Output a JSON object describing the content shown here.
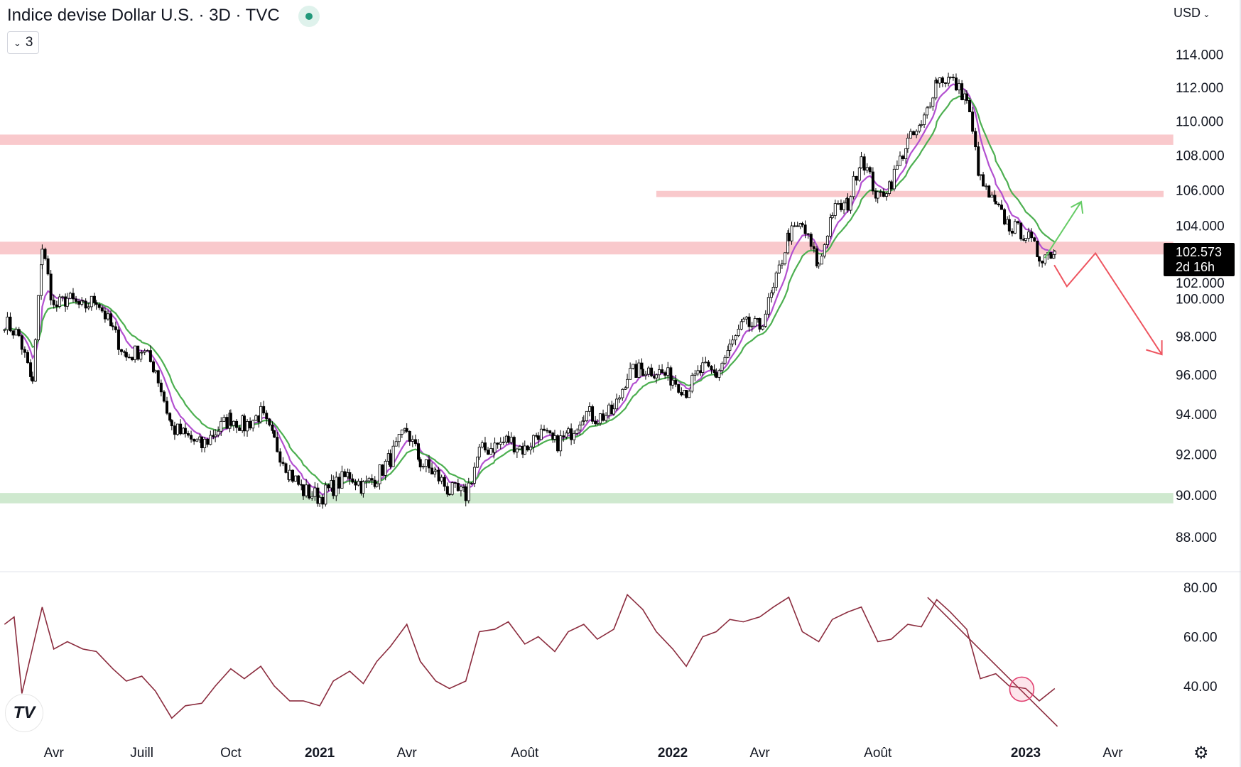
{
  "header": {
    "title": "Indice devise Dollar U.S. · 3D · TVC",
    "status_color": "#22997b",
    "indicators_toggle": "3",
    "currency": "USD"
  },
  "price_label": {
    "value": "102.573",
    "countdown": "2d 16h"
  },
  "colors": {
    "resistance_zone": "#f9c9cc",
    "support_zone": "#cfe9cf",
    "ema_fast": "#b24fd0",
    "ema_slow": "#4caf50",
    "rsi_line": "#8b2c3e",
    "arrow_up": "#66cc66",
    "arrow_down": "#ee5560"
  },
  "logo": "TV",
  "settings_icon": "gear-icon",
  "chart_data": [
    {
      "type": "candlestick",
      "title": "Indice devise Dollar U.S. · 3D · TVC",
      "scale": "log",
      "ylim": [
        87,
        115
      ],
      "yticks": [
        "88.000",
        "90.000",
        "92.000",
        "94.000",
        "96.000",
        "98.000",
        "100.000",
        "102.000",
        "104.000",
        "106.000",
        "108.000",
        "110.000",
        "112.000",
        "114.000"
      ],
      "xticks": [
        {
          "label": "Avr",
          "date": "2020-04-01",
          "year": false
        },
        {
          "label": "Juill",
          "date": "2020-07-01",
          "year": false
        },
        {
          "label": "Oct",
          "date": "2020-10-01",
          "year": false
        },
        {
          "label": "2021",
          "date": "2021-01-01",
          "year": true
        },
        {
          "label": "Avr",
          "date": "2021-04-01",
          "year": false
        },
        {
          "label": "Août",
          "date": "2021-08-01",
          "year": false
        },
        {
          "label": "2022",
          "date": "2022-01-01",
          "year": true
        },
        {
          "label": "Avr",
          "date": "2022-04-01",
          "year": false
        },
        {
          "label": "Août",
          "date": "2022-08-01",
          "year": false
        },
        {
          "label": "2023",
          "date": "2023-01-01",
          "year": true
        },
        {
          "label": "Avr",
          "date": "2023-04-01",
          "year": false
        }
      ],
      "close_anchors": [
        [
          "2020-02-10",
          98.8
        ],
        [
          "2020-02-25",
          98.0
        ],
        [
          "2020-03-10",
          95.5
        ],
        [
          "2020-03-20",
          102.8
        ],
        [
          "2020-04-01",
          99.5
        ],
        [
          "2020-04-15",
          100.0
        ],
        [
          "2020-05-01",
          99.5
        ],
        [
          "2020-05-15",
          100.0
        ],
        [
          "2020-06-01",
          98.3
        ],
        [
          "2020-06-15",
          96.9
        ],
        [
          "2020-07-01",
          97.3
        ],
        [
          "2020-07-15",
          96.3
        ],
        [
          "2020-08-01",
          93.3
        ],
        [
          "2020-08-15",
          92.9
        ],
        [
          "2020-09-01",
          92.4
        ],
        [
          "2020-09-15",
          93.1
        ],
        [
          "2020-10-01",
          93.8
        ],
        [
          "2020-10-15",
          93.4
        ],
        [
          "2020-11-01",
          94.0
        ],
        [
          "2020-11-15",
          92.6
        ],
        [
          "2020-12-01",
          91.1
        ],
        [
          "2020-12-15",
          90.2
        ],
        [
          "2021-01-01",
          89.9
        ],
        [
          "2021-01-15",
          90.4
        ],
        [
          "2021-02-01",
          91.0
        ],
        [
          "2021-02-15",
          90.4
        ],
        [
          "2021-03-01",
          90.9
        ],
        [
          "2021-03-15",
          91.8
        ],
        [
          "2021-04-01",
          93.2
        ],
        [
          "2021-04-15",
          91.6
        ],
        [
          "2021-05-01",
          91.0
        ],
        [
          "2021-05-15",
          90.2
        ],
        [
          "2021-06-01",
          90.0
        ],
        [
          "2021-06-15",
          92.1
        ],
        [
          "2021-07-01",
          92.4
        ],
        [
          "2021-07-15",
          92.7
        ],
        [
          "2021-08-01",
          92.2
        ],
        [
          "2021-08-15",
          93.1
        ],
        [
          "2021-09-01",
          92.5
        ],
        [
          "2021-09-15",
          92.9
        ],
        [
          "2021-10-01",
          94.1
        ],
        [
          "2021-10-15",
          93.8
        ],
        [
          "2021-11-01",
          94.1
        ],
        [
          "2021-11-15",
          96.0
        ],
        [
          "2021-12-01",
          96.3
        ],
        [
          "2021-12-15",
          96.2
        ],
        [
          "2022-01-01",
          95.8
        ],
        [
          "2022-01-15",
          95.2
        ],
        [
          "2022-02-01",
          96.3
        ],
        [
          "2022-02-15",
          96.0
        ],
        [
          "2022-03-01",
          97.4
        ],
        [
          "2022-03-15",
          98.6
        ],
        [
          "2022-04-01",
          98.5
        ],
        [
          "2022-04-15",
          100.4
        ],
        [
          "2022-05-01",
          103.5
        ],
        [
          "2022-05-15",
          104.0
        ],
        [
          "2022-06-01",
          101.7
        ],
        [
          "2022-06-15",
          104.8
        ],
        [
          "2022-07-01",
          105.2
        ],
        [
          "2022-07-15",
          108.0
        ],
        [
          "2022-08-01",
          105.5
        ],
        [
          "2022-08-15",
          106.5
        ],
        [
          "2022-09-01",
          108.8
        ],
        [
          "2022-09-15",
          109.6
        ],
        [
          "2022-10-01",
          112.5
        ],
        [
          "2022-10-15",
          112.5
        ],
        [
          "2022-11-01",
          111.3
        ],
        [
          "2022-11-15",
          106.5
        ],
        [
          "2022-12-01",
          105.0
        ],
        [
          "2022-12-15",
          104.0
        ],
        [
          "2023-01-01",
          103.5
        ],
        [
          "2023-01-15",
          102.3
        ],
        [
          "2023-01-31",
          102.573
        ]
      ],
      "zones": [
        {
          "kind": "resistance",
          "from": 108.6,
          "to": 109.2,
          "start": "2020-02-10"
        },
        {
          "kind": "resistance",
          "from": 105.6,
          "to": 105.95,
          "start": "2021-12-15"
        },
        {
          "kind": "resistance",
          "from": 102.4,
          "to": 103.1,
          "start": "2020-02-10"
        },
        {
          "kind": "support",
          "from": 89.6,
          "to": 90.1,
          "start": "2020-02-10"
        }
      ]
    },
    {
      "type": "line",
      "title": "RSI",
      "ylim": [
        20,
        85
      ],
      "yticks": [
        "40.00",
        "60.00",
        "80.00"
      ],
      "values": [
        [
          "2020-02-10",
          65
        ],
        [
          "2020-02-20",
          68
        ],
        [
          "2020-02-28",
          37
        ],
        [
          "2020-03-20",
          72
        ],
        [
          "2020-04-01",
          55
        ],
        [
          "2020-04-15",
          58
        ],
        [
          "2020-05-01",
          55
        ],
        [
          "2020-05-15",
          54
        ],
        [
          "2020-06-01",
          47
        ],
        [
          "2020-06-15",
          42
        ],
        [
          "2020-07-01",
          44
        ],
        [
          "2020-07-15",
          38
        ],
        [
          "2020-08-01",
          27
        ],
        [
          "2020-08-15",
          32
        ],
        [
          "2020-09-01",
          33
        ],
        [
          "2020-09-15",
          40
        ],
        [
          "2020-10-01",
          47
        ],
        [
          "2020-10-15",
          43
        ],
        [
          "2020-11-01",
          48
        ],
        [
          "2020-11-15",
          40
        ],
        [
          "2020-12-01",
          34
        ],
        [
          "2020-12-15",
          34
        ],
        [
          "2021-01-01",
          32
        ],
        [
          "2021-01-15",
          42
        ],
        [
          "2021-02-01",
          46
        ],
        [
          "2021-02-15",
          41
        ],
        [
          "2021-03-01",
          50
        ],
        [
          "2021-03-15",
          56
        ],
        [
          "2021-04-01",
          65
        ],
        [
          "2021-04-15",
          50
        ],
        [
          "2021-05-01",
          42
        ],
        [
          "2021-05-15",
          39
        ],
        [
          "2021-06-01",
          42
        ],
        [
          "2021-06-15",
          62
        ],
        [
          "2021-07-01",
          63
        ],
        [
          "2021-07-15",
          66
        ],
        [
          "2021-08-01",
          57
        ],
        [
          "2021-08-15",
          60
        ],
        [
          "2021-09-01",
          54
        ],
        [
          "2021-09-15",
          62
        ],
        [
          "2021-10-01",
          65
        ],
        [
          "2021-10-15",
          59
        ],
        [
          "2021-11-01",
          63
        ],
        [
          "2021-11-15",
          77
        ],
        [
          "2021-12-01",
          71
        ],
        [
          "2021-12-15",
          62
        ],
        [
          "2022-01-01",
          55
        ],
        [
          "2022-01-15",
          48
        ],
        [
          "2022-02-01",
          60
        ],
        [
          "2022-02-15",
          62
        ],
        [
          "2022-03-01",
          67
        ],
        [
          "2022-03-15",
          66
        ],
        [
          "2022-04-01",
          68
        ],
        [
          "2022-04-15",
          72
        ],
        [
          "2022-05-01",
          76
        ],
        [
          "2022-05-15",
          62
        ],
        [
          "2022-06-01",
          58
        ],
        [
          "2022-06-15",
          67
        ],
        [
          "2022-07-01",
          70
        ],
        [
          "2022-07-15",
          72
        ],
        [
          "2022-08-01",
          58
        ],
        [
          "2022-08-15",
          59
        ],
        [
          "2022-09-01",
          65
        ],
        [
          "2022-09-15",
          64
        ],
        [
          "2022-10-01",
          75
        ],
        [
          "2022-10-15",
          70
        ],
        [
          "2022-11-01",
          63
        ],
        [
          "2022-11-15",
          43
        ],
        [
          "2022-12-01",
          45
        ],
        [
          "2022-12-15",
          40
        ],
        [
          "2023-01-01",
          39
        ],
        [
          "2023-01-15",
          34
        ],
        [
          "2023-01-31",
          39
        ]
      ]
    }
  ]
}
